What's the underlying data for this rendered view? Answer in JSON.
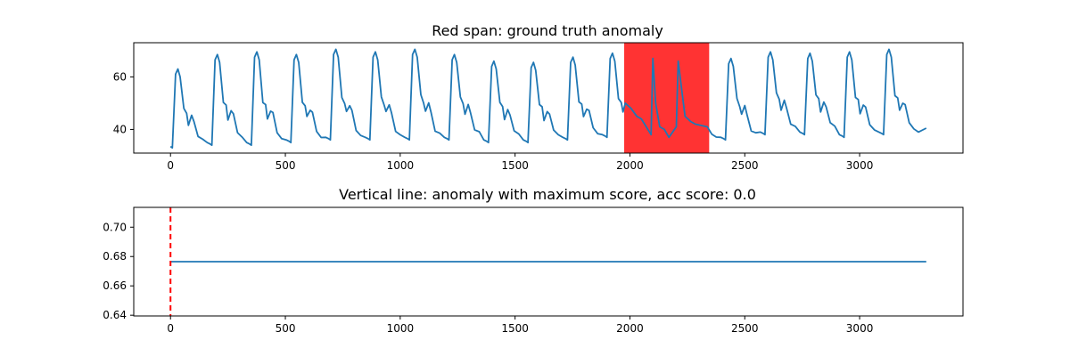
{
  "chart_data": [
    {
      "type": "line",
      "title": "Red span: ground truth anomaly",
      "xlabel": "",
      "ylabel": "",
      "xlim": [
        -160,
        3450
      ],
      "ylim": [
        31,
        73
      ],
      "xticks": [
        0,
        500,
        1000,
        1500,
        2000,
        2500,
        3000
      ],
      "yticks": [
        40,
        60
      ],
      "grid": false,
      "span": {
        "x_start": 1975,
        "x_end": 2345,
        "color": "#ff0000"
      },
      "series_color": "#1f77b4",
      "beat_length": 172,
      "beat_count": 19,
      "beat_peaks": [
        63,
        68.5,
        69.5,
        68.5,
        70.5,
        69.5,
        70.5,
        68.5,
        66,
        65.5,
        67.5,
        69,
        68.5,
        70.5,
        67,
        69.5,
        69,
        69.5,
        70.5
      ],
      "beat_minima": [
        33,
        34,
        34,
        35,
        36,
        36,
        36,
        36,
        35,
        35,
        36,
        37,
        36,
        35,
        36,
        38,
        38,
        37,
        38
      ],
      "anomaly_peaks": [
        [
          2100,
          67
        ],
        [
          2210,
          66
        ]
      ],
      "x_end": 3290,
      "end_value": 40.5
    },
    {
      "type": "line",
      "title": "Vertical line: anomaly with maximum score, acc score: 0.0",
      "xlabel": "",
      "ylabel": "",
      "xlim": [
        -160,
        3450
      ],
      "ylim": [
        0.6395,
        0.7135
      ],
      "xticks": [
        0,
        500,
        1000,
        1500,
        2000,
        2500,
        3000
      ],
      "yticks": [
        0.64,
        0.66,
        0.68,
        0.7
      ],
      "ytick_labels": [
        "0.64",
        "0.66",
        "0.68",
        "0.70"
      ],
      "grid": false,
      "series": [
        {
          "x": [
            0,
            3290
          ],
          "y": [
            0.6765,
            0.6765
          ]
        }
      ],
      "series_color": "#1f77b4",
      "vline": {
        "x": 0,
        "color": "#ff0000",
        "style": "dashed"
      }
    }
  ]
}
